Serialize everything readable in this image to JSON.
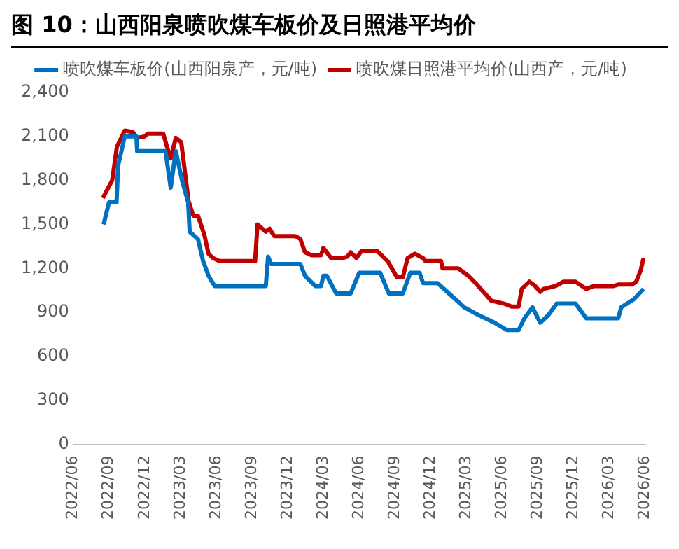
{
  "chart_data": {
    "type": "line",
    "title": "图 10：山西阳泉喷吹煤车板价及日照港平均价",
    "xlim": [
      "2022-06",
      "2026-06"
    ],
    "xticks": [
      {
        "value": "2022-06",
        "label": "2022/06"
      },
      {
        "value": "2022-09",
        "label": "2022/09"
      },
      {
        "value": "2022-12",
        "label": "2022/12"
      },
      {
        "value": "2023-03",
        "label": "2023/03"
      },
      {
        "value": "2023-06",
        "label": "2023/06"
      },
      {
        "value": "2023-09",
        "label": "2023/09"
      },
      {
        "value": "2023-12",
        "label": "2023/12"
      },
      {
        "value": "2024-03",
        "label": "2024/03"
      },
      {
        "value": "2024-06",
        "label": "2024/06"
      },
      {
        "value": "2024-09",
        "label": "2024/09"
      },
      {
        "value": "2024-12",
        "label": "2024/12"
      },
      {
        "value": "2025-03",
        "label": "2025/03"
      },
      {
        "value": "2025-06",
        "label": "2025/06"
      },
      {
        "value": "2025-09",
        "label": "2025/09"
      },
      {
        "value": "2025-12",
        "label": "2025/12"
      },
      {
        "value": "2026-03",
        "label": "2026/03"
      },
      {
        "value": "2026-06",
        "label": "2026/06"
      }
    ],
    "ylim": [
      0,
      2400
    ],
    "yticks": [
      0,
      300,
      600,
      900,
      {
        "value": 1200,
        "label": "1,200"
      },
      {
        "value": 1500,
        "label": "1,500"
      },
      {
        "value": 1800,
        "label": "1,800"
      },
      {
        "value": 2100,
        "label": "2,100"
      },
      {
        "value": 2400,
        "label": "2,400"
      }
    ],
    "grid": false,
    "legend": "top",
    "marker": "none",
    "line_style": "solid",
    "series": [
      {
        "name": "喷吹煤车板价(山西阳泉产，元/吨)",
        "color": "#0070c0",
        "x": [
          "2022-08-18",
          "2022-08-20",
          "2022-09-01",
          "2022-09-20",
          "2022-09-24",
          "2022-10-11",
          "2022-11-10",
          "2022-11-12",
          "2023-01-24",
          "2023-02-06",
          "2023-02-18",
          "2023-03-05",
          "2023-03-21",
          "2023-03-25",
          "2023-04-15",
          "2023-04-28",
          "2023-05-12",
          "2023-05-28",
          "2023-10-06",
          "2023-10-12",
          "2023-10-20",
          "2024-01-03",
          "2024-01-15",
          "2024-02-10",
          "2024-02-24",
          "2024-03-01",
          "2024-03-10",
          "2024-04-03",
          "2024-05-10",
          "2024-06-01",
          "2024-07-25",
          "2024-08-16",
          "2024-09-21",
          "2024-10-10",
          "2024-11-03",
          "2024-11-12",
          "2024-12-19",
          "2025-02-24",
          "2025-04-03",
          "2025-05-12",
          "2025-06-13",
          "2025-07-13",
          "2025-07-28",
          "2025-08-18",
          "2025-09-07",
          "2025-09-27",
          "2025-10-19",
          "2025-12-06",
          "2026-01-03",
          "2026-03-24",
          "2026-04-01",
          "2026-05-03",
          "2026-05-21",
          "2026-05-28"
        ],
        "values": [
          1500,
          1500,
          1650,
          1650,
          1900,
          2100,
          2100,
          2000,
          2000,
          1750,
          2000,
          1800,
          1650,
          1450,
          1400,
          1250,
          1150,
          1080,
          1080,
          1280,
          1230,
          1230,
          1150,
          1080,
          1080,
          1150,
          1150,
          1030,
          1030,
          1170,
          1170,
          1030,
          1030,
          1170,
          1170,
          1100,
          1100,
          935,
          880,
          830,
          780,
          780,
          860,
          935,
          830,
          880,
          960,
          960,
          860,
          860,
          935,
          990,
          1040,
          1060
        ]
      },
      {
        "name": "喷吹煤日照港平均价(山西产，元/吨)",
        "color": "#c00000",
        "x": [
          "2022-08-16",
          "2022-09-09",
          "2022-09-21",
          "2022-10-11",
          "2022-11-01",
          "2022-11-12",
          "2022-12-01",
          "2022-12-09",
          "2023-01-18",
          "2023-01-28",
          "2023-02-06",
          "2023-02-18",
          "2023-03-03",
          "2023-03-22",
          "2023-04-03",
          "2023-04-15",
          "2023-05-01",
          "2023-05-12",
          "2023-05-24",
          "2023-06-09",
          "2023-09-09",
          "2023-09-15",
          "2023-10-06",
          "2023-10-16",
          "2023-10-28",
          "2023-12-21",
          "2024-01-03",
          "2024-01-15",
          "2024-02-01",
          "2024-02-24",
          "2024-03-01",
          "2024-03-21",
          "2024-04-18",
          "2024-05-01",
          "2024-05-10",
          "2024-05-25",
          "2024-06-07",
          "2024-07-16",
          "2024-08-13",
          "2024-09-06",
          "2024-09-21",
          "2024-10-03",
          "2024-10-22",
          "2024-11-12",
          "2024-11-18",
          "2024-12-28",
          "2025-01-01",
          "2025-02-10",
          "2025-03-06",
          "2025-03-25",
          "2025-05-04",
          "2025-06-06",
          "2025-06-25",
          "2025-07-13",
          "2025-07-21",
          "2025-08-10",
          "2025-08-25",
          "2025-09-07",
          "2025-09-15",
          "2025-10-16",
          "2025-11-06",
          "2025-12-06",
          "2026-01-03",
          "2026-01-22",
          "2026-03-12",
          "2026-03-24",
          "2026-04-28",
          "2026-05-09",
          "2026-05-21",
          "2026-05-28"
        ],
        "values": [
          1680,
          1800,
          2030,
          2140,
          2130,
          2090,
          2100,
          2120,
          2120,
          2030,
          1950,
          2090,
          2060,
          1660,
          1560,
          1560,
          1430,
          1300,
          1270,
          1250,
          1250,
          1500,
          1450,
          1470,
          1420,
          1420,
          1400,
          1310,
          1290,
          1290,
          1340,
          1270,
          1270,
          1280,
          1310,
          1270,
          1320,
          1320,
          1250,
          1140,
          1140,
          1270,
          1300,
          1270,
          1250,
          1250,
          1200,
          1200,
          1150,
          1100,
          980,
          960,
          940,
          940,
          1060,
          1110,
          1080,
          1040,
          1060,
          1080,
          1110,
          1110,
          1060,
          1080,
          1080,
          1090,
          1090,
          1110,
          1190,
          1270
        ]
      }
    ]
  }
}
